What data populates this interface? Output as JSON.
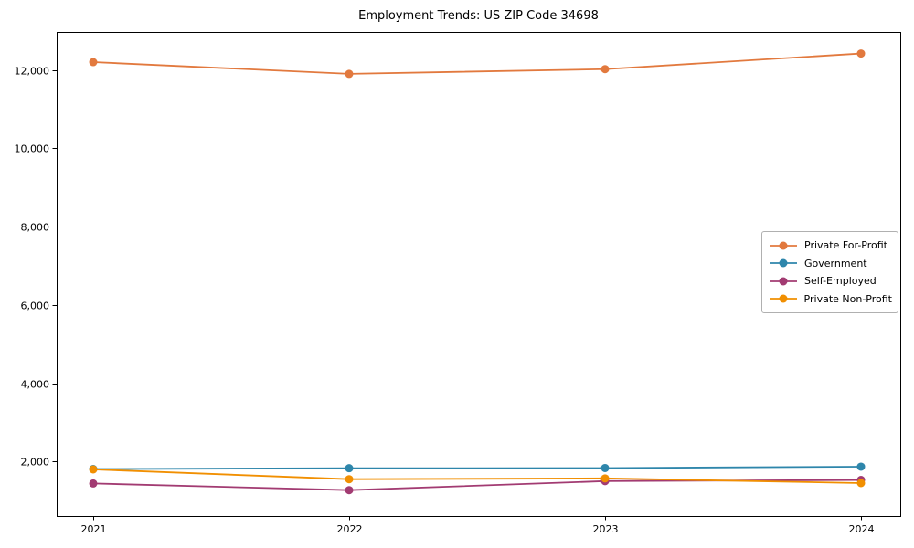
{
  "chart_data": {
    "type": "line",
    "title": "Employment Trends: US ZIP Code 34698",
    "x": [
      2021,
      2022,
      2023,
      2024
    ],
    "x_tick_labels": [
      "2021",
      "2022",
      "2023",
      "2024"
    ],
    "series": [
      {
        "name": "Private For-Profit",
        "color": "#E2793E",
        "values": [
          12200,
          11900,
          12020,
          12420
        ]
      },
      {
        "name": "Government",
        "color": "#2E86AB",
        "values": [
          1810,
          1830,
          1835,
          1870
        ]
      },
      {
        "name": "Self-Employed",
        "color": "#A23B72",
        "values": [
          1440,
          1270,
          1500,
          1530
        ]
      },
      {
        "name": "Private Non-Profit",
        "color": "#F18F01",
        "values": [
          1800,
          1550,
          1570,
          1450
        ]
      }
    ],
    "yticks": [
      2000,
      4000,
      6000,
      8000,
      10000,
      12000
    ],
    "ytick_labels": [
      "2,000",
      "4,000",
      "6,000",
      "8,000",
      "10,000",
      "12,000"
    ],
    "ylim": [
      610,
      12970
    ],
    "grid": false,
    "legend_position": "center-right",
    "marker": "circle",
    "axis_color": "#000000"
  }
}
